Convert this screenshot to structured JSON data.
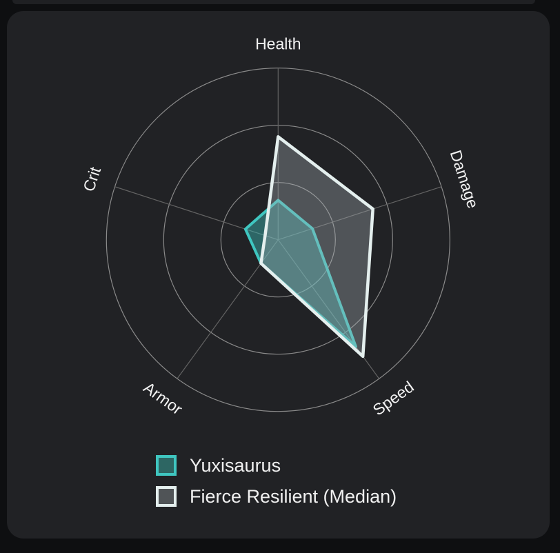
{
  "page": {
    "background_color": "#0e0f11",
    "card_background_color": "#212225"
  },
  "chart_data": {
    "type": "radar",
    "title": "",
    "categories": [
      "Health",
      "Damage",
      "Speed",
      "Armor",
      "Crit"
    ],
    "series": [
      {
        "name": "Yuxisaurus",
        "values": [
          23,
          21,
          77,
          17,
          20
        ],
        "stroke": "#3fc6c0",
        "fill": "rgba(63,198,192,0.42)",
        "legend_fill": "#2d6663"
      },
      {
        "name": "Fierce Resilient (Median)",
        "values": [
          60,
          58,
          84,
          17,
          8
        ],
        "stroke": "#e4efee",
        "fill": "rgba(168,178,182,0.35)",
        "legend_fill": "#505457"
      }
    ],
    "max_value": 100,
    "value_range": [
      0,
      100
    ],
    "grid": true,
    "grid_ring_count": 3,
    "grid_ring_color": "#8a8a8a",
    "axis_line_color": "#636363",
    "axis_label_color": "#f2f2f2",
    "legend_position": "bottom-left"
  },
  "legend": {
    "items": [
      {
        "label": "Yuxisaurus"
      },
      {
        "label": "Fierce Resilient (Median)"
      }
    ]
  }
}
